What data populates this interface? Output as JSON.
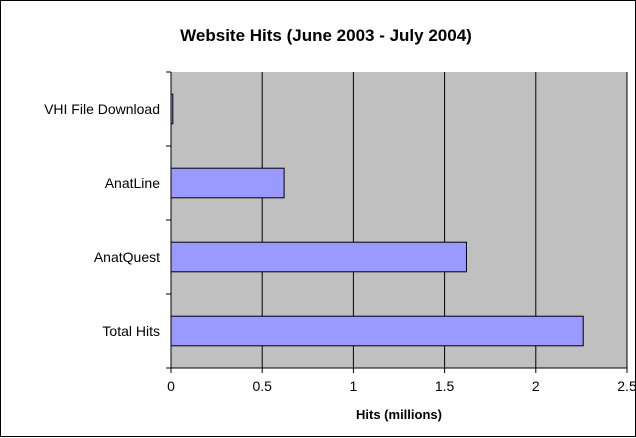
{
  "chart_data": {
    "type": "bar",
    "orientation": "horizontal",
    "title": "Website Hits (June 2003 - July 2004)",
    "xlabel": "Hits (millions)",
    "ylabel": "",
    "categories": [
      "VHI File Download",
      "AnatLine",
      "AnatQuest",
      "Total Hits"
    ],
    "values": [
      0.01,
      0.62,
      1.62,
      2.26
    ],
    "xlim": [
      0,
      2.5
    ],
    "xticks": [
      "0",
      "0.5",
      "1",
      "1.5",
      "2",
      "2.5"
    ],
    "xtick_values": [
      0,
      0.5,
      1,
      1.5,
      2,
      2.5
    ],
    "grid": "vertical",
    "legend": "none",
    "colors": {
      "plot_background": "#C0C0C0",
      "bar_fill": "#9999FF",
      "bar_stroke": "#000000",
      "gridline": "#000000"
    }
  }
}
